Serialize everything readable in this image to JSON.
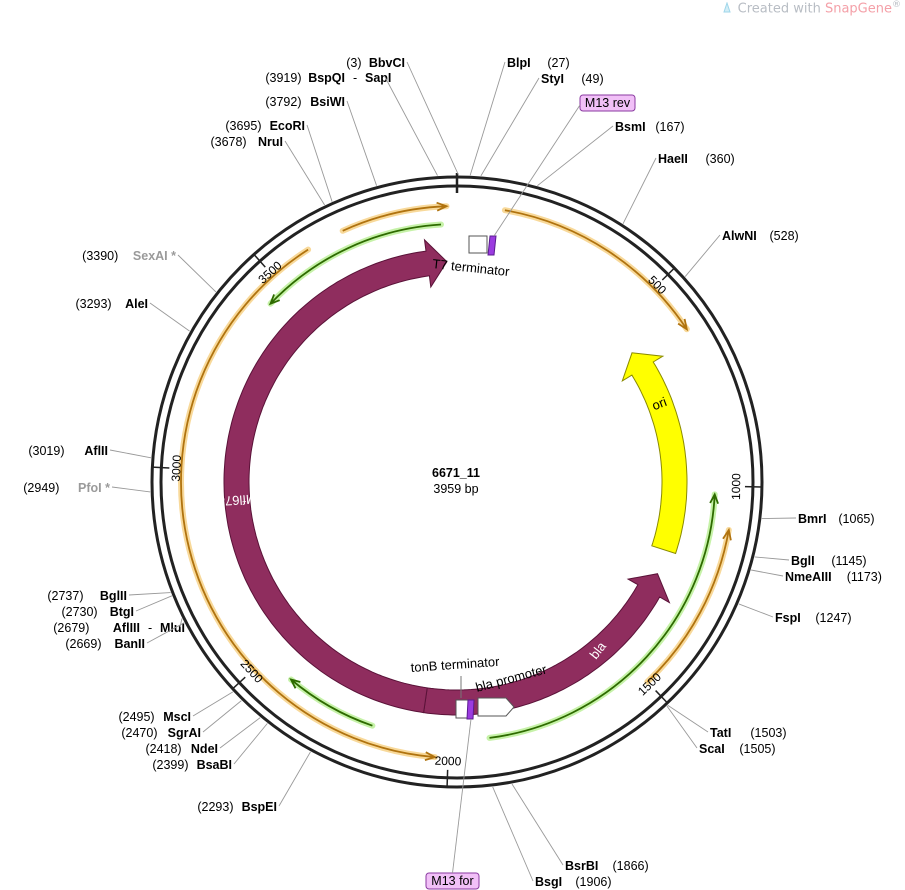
{
  "credit": {
    "prefix": "Created with ",
    "brand": "SnapGene",
    "mark": "®"
  },
  "plasmid": {
    "name": "6671_11",
    "length_label": "3959 bp",
    "length": 3959
  },
  "ticks": [
    {
      "bp": 500,
      "label": "500"
    },
    {
      "bp": 1000,
      "label": "1000"
    },
    {
      "bp": 1500,
      "label": "1500"
    },
    {
      "bp": 2000,
      "label": "2000"
    },
    {
      "bp": 2500,
      "label": "2500"
    },
    {
      "bp": 3000,
      "label": "3000"
    },
    {
      "bp": 3500,
      "label": "3500"
    }
  ],
  "features": [
    {
      "name": "ori",
      "label": "ori",
      "type": "rep_origin",
      "color": "#ffff00",
      "stroke": "#8a8a00",
      "start": 589,
      "end": 1189,
      "direction": "reverse"
    },
    {
      "name": "bla",
      "label": "bla",
      "type": "cds",
      "color": "#8f2d5e",
      "stroke": "#5a1238",
      "start": 1260,
      "end": 2070,
      "direction": "reverse"
    },
    {
      "name": "mfl678",
      "label": "Mfl678",
      "type": "cds",
      "color": "#8f2d5e",
      "stroke": "#5a1238",
      "start": 2070,
      "end": 3930,
      "direction": "forward"
    },
    {
      "name": "bla-promoter",
      "label": "bla promoter",
      "type": "promoter",
      "color": "#ffffff",
      "stroke": "#555555",
      "start": 1960,
      "end": 2040,
      "direction": "reverse"
    },
    {
      "name": "tonb-terminator",
      "label": "tonB terminator",
      "type": "terminator",
      "color": "#ffffff",
      "stroke": "#555555",
      "start": 2000,
      "end": 2028,
      "direction": "none"
    },
    {
      "name": "t7-terminator",
      "label": "T7 terminator",
      "type": "terminator",
      "color": "#ffffff",
      "stroke": "#555555",
      "start": 3940,
      "end": 3959,
      "direction": "none"
    }
  ],
  "primers": [
    {
      "name": "m13-rev",
      "label": "M13 rev",
      "bp": 49,
      "color": "#f1c0f7",
      "stroke": "#8a3aa0"
    },
    {
      "name": "m13-for",
      "label": "M13 for",
      "bp": 1985,
      "color": "#f1c0f7",
      "stroke": "#8a3aa0"
    }
  ],
  "orfs": [
    {
      "name": "orf-outer-orange-1",
      "start": 3690,
      "end": 3935,
      "direction": "forward",
      "color": "#b0730f",
      "ring": "outer"
    },
    {
      "name": "orf-outer-orange-2",
      "start": 110,
      "end": 620,
      "direction": "forward",
      "color": "#b0730f",
      "ring": "outer"
    },
    {
      "name": "orf-outer-orange-3",
      "start": 1100,
      "end": 1500,
      "direction": "reverse",
      "color": "#b0730f",
      "ring": "outer"
    },
    {
      "name": "orf-outer-orange-4",
      "start": 2030,
      "end": 3600,
      "direction": "reverse",
      "color": "#b0730f",
      "ring": "outer"
    },
    {
      "name": "orf-inner-green-1",
      "start": 3450,
      "end": 3920,
      "direction": "reverse",
      "color": "#2e6b00",
      "ring": "inner"
    },
    {
      "name": "orf-inner-green-2",
      "start": 1020,
      "end": 1900,
      "direction": "reverse",
      "color": "#2e6b00",
      "ring": "inner"
    },
    {
      "name": "orf-inner-green-3",
      "start": 2190,
      "end": 2420,
      "direction": "forward",
      "color": "#2e6b00",
      "ring": "inner"
    }
  ],
  "enzymes": [
    {
      "id": "bbvci",
      "name": "BbvCI",
      "pos": "(3)",
      "bp": 3,
      "gray": false
    },
    {
      "id": "bspqi-sapi",
      "name": "BspQI",
      "name2": "SapI",
      "pos": "(3919)",
      "bp": 3919,
      "gray": false
    },
    {
      "id": "bsiwi",
      "name": "BsiWI",
      "pos": "(3792)",
      "bp": 3792,
      "gray": false
    },
    {
      "id": "ecori",
      "name": "EcoRI",
      "pos": "(3695)",
      "bp": 3695,
      "gray": false
    },
    {
      "id": "srui",
      "name": "NruI",
      "pos": "(3678)",
      "bp": 3678,
      "gray": false
    },
    {
      "id": "sexai",
      "name": "SexAI *",
      "pos": "(3390)",
      "bp": 3390,
      "gray": true
    },
    {
      "id": "alei",
      "name": "AleI",
      "pos": "(3293)",
      "bp": 3293,
      "gray": false
    },
    {
      "id": "aflii",
      "name": "AflII",
      "pos": "(3019)",
      "bp": 3019,
      "gray": false
    },
    {
      "id": "pfoi",
      "name": "PfoI *",
      "pos": "(2949)",
      "bp": 2949,
      "gray": true
    },
    {
      "id": "bglii",
      "name": "BglII",
      "pos": "(2737)",
      "bp": 2737,
      "gray": false
    },
    {
      "id": "btgi",
      "name": "BtgI",
      "pos": "(2730)",
      "bp": 2730,
      "gray": false
    },
    {
      "id": "afliii-mlui",
      "name": "AflIII",
      "name2": "MluI",
      "pos": "(2679)",
      "bp": 2679,
      "gray": false
    },
    {
      "id": "banii",
      "name": "BanII",
      "pos": "(2669)",
      "bp": 2669,
      "gray": false
    },
    {
      "id": "msci",
      "name": "MscI",
      "pos": "(2495)",
      "bp": 2495,
      "gray": false
    },
    {
      "id": "sgrai",
      "name": "SgrAI",
      "pos": "(2470)",
      "bp": 2470,
      "gray": false
    },
    {
      "id": "ndei",
      "name": "NdeI",
      "pos": "(2418)",
      "bp": 2418,
      "gray": false
    },
    {
      "id": "bsabi",
      "name": "BsaBI",
      "pos": "(2399)",
      "bp": 2399,
      "gray": false
    },
    {
      "id": "bspei",
      "name": "BspEI",
      "pos": "(2293)",
      "bp": 2293,
      "gray": false
    },
    {
      "id": "bpli",
      "name": "BlpI",
      "pos": "(27)",
      "bp": 27,
      "gray": false
    },
    {
      "id": "styi",
      "name": "StyI",
      "pos": "(49)",
      "bp": 49,
      "gray": false
    },
    {
      "id": "bsmi",
      "name": "BsmI",
      "pos": "(167)",
      "bp": 167,
      "gray": false
    },
    {
      "id": "haeii",
      "name": "HaeII",
      "pos": "(360)",
      "bp": 360,
      "gray": false
    },
    {
      "id": "alwni",
      "name": "AlwNI",
      "pos": "(528)",
      "bp": 528,
      "gray": false
    },
    {
      "id": "bmri",
      "name": "BmrI",
      "pos": "(1065)",
      "bp": 1065,
      "gray": false
    },
    {
      "id": "bgli",
      "name": "BglI",
      "pos": "(1145)",
      "bp": 1145,
      "gray": false
    },
    {
      "id": "nmeaiii",
      "name": "NmeAIII",
      "pos": "(1173)",
      "bp": 1173,
      "gray": false
    },
    {
      "id": "fspi",
      "name": "FspI",
      "pos": "(1247)",
      "bp": 1247,
      "gray": false
    },
    {
      "id": "tati",
      "name": "TatI",
      "pos": "(1503)",
      "bp": 1503,
      "gray": false
    },
    {
      "id": "scai",
      "name": "ScaI",
      "pos": "(1505)",
      "bp": 1505,
      "gray": false
    },
    {
      "id": "bsrbi",
      "name": "BsrBI",
      "pos": "(1866)",
      "bp": 1866,
      "gray": false
    },
    {
      "id": "bsgi",
      "name": "BsgI",
      "pos": "(1906)",
      "bp": 1906,
      "gray": false
    }
  ]
}
